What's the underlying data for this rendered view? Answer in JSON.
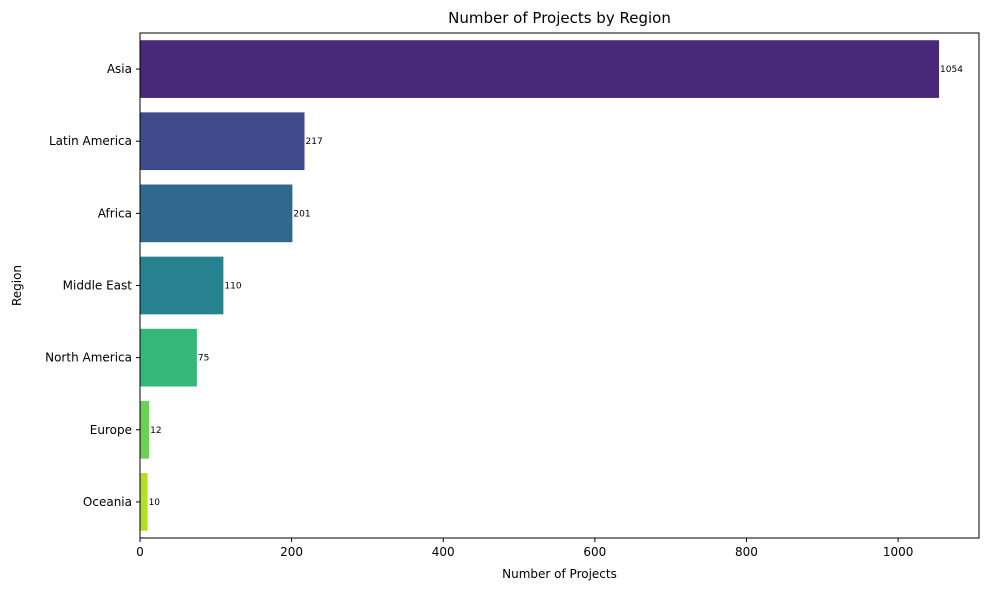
{
  "chart_data": {
    "type": "bar",
    "orientation": "horizontal",
    "title": "Number of Projects by Region",
    "xlabel": "Number of Projects",
    "ylabel": "Region",
    "categories": [
      "Asia",
      "Latin America",
      "Africa",
      "Middle East",
      "North America",
      "Europe",
      "Oceania"
    ],
    "values": [
      1054,
      217,
      201,
      110,
      75,
      12,
      10
    ],
    "data_labels": [
      "1054",
      "217",
      "201",
      "110",
      "75",
      "12",
      "10"
    ],
    "xlim": [
      0,
      1106.7
    ],
    "xticks": [
      0,
      200,
      400,
      600,
      800,
      1000
    ],
    "xtick_labels": [
      "0",
      "200",
      "400",
      "600",
      "800",
      "1000"
    ],
    "grid": false,
    "legend": "none",
    "colors": [
      "#482878",
      "#3e4a89",
      "#31688e",
      "#26828e",
      "#35b779",
      "#6ece58",
      "#b5de2b"
    ]
  }
}
